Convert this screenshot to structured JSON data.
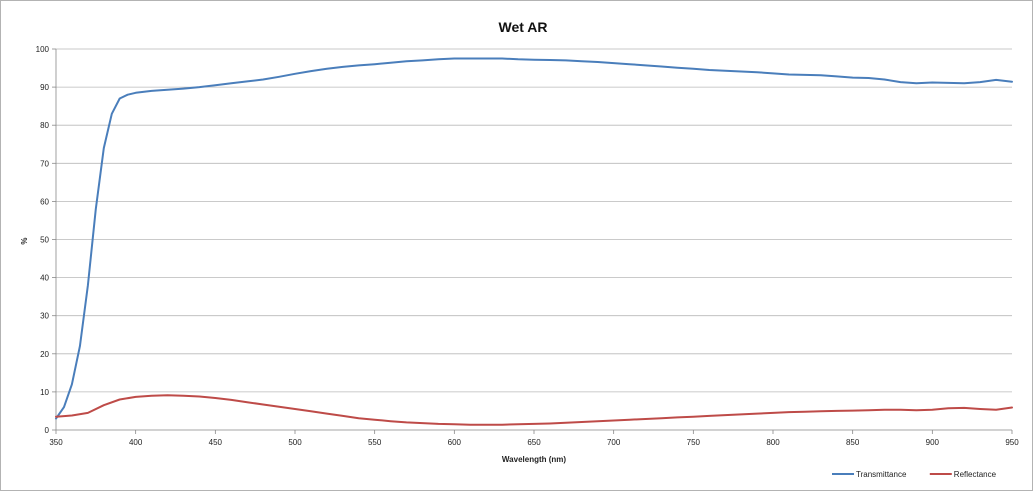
{
  "chart_data": {
    "type": "line",
    "title": "Wet AR",
    "xlabel": "Wavelength (nm)",
    "ylabel": "%",
    "xlim": [
      350,
      950
    ],
    "ylim": [
      0,
      100
    ],
    "xticks": [
      350,
      400,
      450,
      500,
      550,
      600,
      650,
      700,
      750,
      800,
      850,
      900,
      950
    ],
    "yticks": [
      0,
      10,
      20,
      30,
      40,
      50,
      60,
      70,
      80,
      90,
      100
    ],
    "grid": "horizontal",
    "legend_position": "bottom-right",
    "series": [
      {
        "name": "Transmittance",
        "color": "#4a7ebb",
        "x": [
          350,
          355,
          360,
          365,
          370,
          375,
          380,
          385,
          390,
          395,
          400,
          410,
          420,
          430,
          440,
          450,
          460,
          470,
          480,
          490,
          500,
          510,
          520,
          530,
          540,
          550,
          560,
          570,
          580,
          590,
          600,
          610,
          620,
          630,
          640,
          650,
          660,
          670,
          680,
          690,
          700,
          710,
          720,
          730,
          740,
          750,
          760,
          770,
          780,
          790,
          800,
          810,
          820,
          830,
          840,
          850,
          860,
          870,
          880,
          890,
          900,
          910,
          920,
          930,
          940,
          950
        ],
        "y": [
          3,
          6,
          12,
          22,
          38,
          58,
          74,
          83,
          87,
          88,
          88.5,
          89,
          89.3,
          89.6,
          90,
          90.5,
          91,
          91.5,
          92,
          92.7,
          93.5,
          94.2,
          94.8,
          95.3,
          95.7,
          96,
          96.4,
          96.8,
          97,
          97.3,
          97.5,
          97.5,
          97.5,
          97.5,
          97.3,
          97.2,
          97.1,
          97,
          96.8,
          96.6,
          96.3,
          96,
          95.7,
          95.4,
          95.1,
          94.8,
          94.5,
          94.3,
          94.1,
          93.9,
          93.6,
          93.3,
          93.2,
          93.1,
          92.8,
          92.5,
          92.4,
          92,
          91.3,
          91,
          91.2,
          91.1,
          91,
          91.3,
          91.9,
          91.4
        ]
      },
      {
        "name": "Reflectance",
        "color": "#be4b48",
        "x": [
          350,
          360,
          370,
          380,
          390,
          400,
          410,
          420,
          430,
          440,
          450,
          460,
          470,
          480,
          490,
          500,
          510,
          520,
          530,
          540,
          550,
          560,
          570,
          580,
          590,
          600,
          610,
          620,
          630,
          640,
          650,
          660,
          670,
          680,
          690,
          700,
          710,
          720,
          730,
          740,
          750,
          760,
          770,
          780,
          790,
          800,
          810,
          820,
          830,
          840,
          850,
          860,
          870,
          880,
          890,
          900,
          910,
          920,
          930,
          940,
          950
        ],
        "y": [
          3.5,
          3.8,
          4.5,
          6.5,
          8,
          8.7,
          9,
          9.1,
          9,
          8.8,
          8.4,
          7.9,
          7.3,
          6.7,
          6.1,
          5.5,
          4.9,
          4.3,
          3.7,
          3.1,
          2.7,
          2.3,
          2,
          1.8,
          1.6,
          1.5,
          1.4,
          1.4,
          1.4,
          1.5,
          1.6,
          1.7,
          1.9,
          2.1,
          2.3,
          2.5,
          2.7,
          2.9,
          3.1,
          3.3,
          3.5,
          3.7,
          3.9,
          4.1,
          4.3,
          4.5,
          4.7,
          4.8,
          4.9,
          5,
          5.1,
          5.2,
          5.3,
          5.3,
          5.2,
          5.3,
          5.7,
          5.8,
          5.5,
          5.3,
          5.9
        ]
      }
    ]
  }
}
